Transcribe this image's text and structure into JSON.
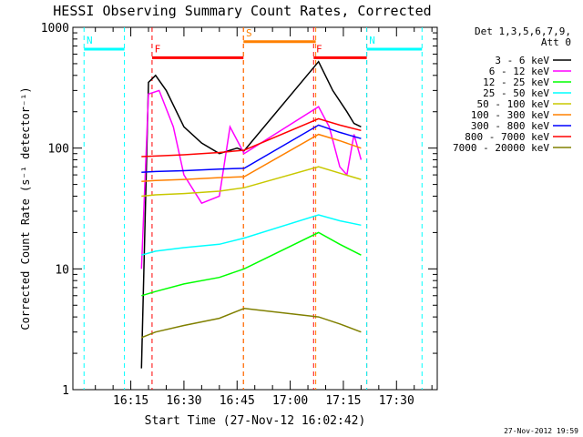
{
  "chart_data": {
    "type": "line",
    "title": "HESSI Observing Summary Count Rates, Corrected",
    "xlabel": "Start Time (27-Nov-12 16:02:42)",
    "ylabel": "Corrected Count Rate (s⁻¹ detector⁻¹)",
    "ylog": true,
    "ylim": [
      1,
      1000
    ],
    "xlim_minutes": [
      16.0,
      41.5
    ],
    "x_ticks": [
      "16:15",
      "16:30",
      "16:45",
      "17:00",
      "17:15",
      "17:30"
    ],
    "y_ticks": [
      "1",
      "10",
      "100",
      "1000"
    ],
    "legend_title": "Det 1,3,5,6,7,9,",
    "legend_subtitle": "Att 0",
    "legend_position": "right",
    "timestamp": "27-Nov-2012 19:59",
    "flags": [
      {
        "label": "F",
        "color": "#ff0000",
        "segments": [
          [
            16.35,
            16.78
          ],
          [
            17.11,
            17.36
          ]
        ],
        "level": 560
      },
      {
        "label": "N",
        "color": "#00ffff",
        "segments": [
          [
            16.03,
            16.22
          ],
          [
            17.36,
            17.62
          ]
        ],
        "level": 660
      },
      {
        "label": "S",
        "color": "#ff8000",
        "segments": [
          [
            16.78,
            17.12
          ]
        ],
        "level": 760
      }
    ],
    "series": [
      {
        "name": "3 - 6 keV",
        "color": "#000000",
        "x": [
          "16:18",
          "16:20",
          "16:22",
          "16:25",
          "16:30",
          "16:35",
          "16:40",
          "16:45",
          "16:47",
          "17:08",
          "17:12",
          "17:16",
          "17:18",
          "17:20"
        ],
        "y": [
          1.5,
          350,
          400,
          300,
          150,
          110,
          90,
          100,
          95,
          520,
          300,
          200,
          160,
          150
        ]
      },
      {
        "name": "6 - 12 keV",
        "color": "#ff00ff",
        "x": [
          "16:18",
          "16:20",
          "16:23",
          "16:27",
          "16:30",
          "16:35",
          "16:40",
          "16:43",
          "16:47",
          "17:08",
          "17:11",
          "17:14",
          "17:16",
          "17:18",
          "17:20"
        ],
        "y": [
          10,
          280,
          300,
          150,
          60,
          35,
          40,
          150,
          90,
          220,
          150,
          70,
          60,
          130,
          80
        ]
      },
      {
        "name": "12 - 25 keV",
        "color": "#00ff00",
        "x": [
          "16:18",
          "16:22",
          "16:30",
          "16:40",
          "16:47",
          "17:08",
          "17:14",
          "17:20"
        ],
        "y": [
          6.0,
          6.5,
          7.5,
          8.5,
          10,
          20,
          16,
          13
        ]
      },
      {
        "name": "25 - 50 keV",
        "color": "#00ffff",
        "x": [
          "16:18",
          "16:22",
          "16:30",
          "16:40",
          "16:47",
          "17:08",
          "17:14",
          "17:20"
        ],
        "y": [
          13,
          14,
          15,
          16,
          18,
          28,
          25,
          23
        ]
      },
      {
        "name": "50 - 100 keV",
        "color": "#c8c800",
        "x": [
          "16:18",
          "16:22",
          "16:30",
          "16:40",
          "16:47",
          "17:08",
          "17:14",
          "17:20"
        ],
        "y": [
          40,
          41,
          42,
          44,
          47,
          70,
          62,
          55
        ]
      },
      {
        "name": "100 - 300 keV",
        "color": "#ff8000",
        "x": [
          "16:18",
          "16:22",
          "16:30",
          "16:40",
          "16:47",
          "17:08",
          "17:14",
          "17:20"
        ],
        "y": [
          53,
          54,
          55,
          57,
          58,
          130,
          115,
          100
        ]
      },
      {
        "name": "300 - 800 keV",
        "color": "#0000ff",
        "x": [
          "16:18",
          "16:22",
          "16:30",
          "16:40",
          "16:47",
          "17:08",
          "17:14",
          "17:20"
        ],
        "y": [
          63,
          64,
          65,
          67,
          68,
          155,
          135,
          120
        ]
      },
      {
        "name": "800 - 7000 keV",
        "color": "#ff0000",
        "x": [
          "16:18",
          "16:22",
          "16:30",
          "16:40",
          "16:47",
          "17:08",
          "17:14",
          "17:20"
        ],
        "y": [
          85,
          86,
          88,
          92,
          96,
          175,
          155,
          140
        ]
      },
      {
        "name": "7000 - 20000 keV",
        "color": "#808000",
        "x": [
          "16:18",
          "16:22",
          "16:30",
          "16:40",
          "16:47",
          "17:08",
          "17:14",
          "17:20"
        ],
        "y": [
          2.7,
          3.0,
          3.4,
          3.9,
          4.7,
          4.0,
          3.5,
          3.0
        ]
      }
    ]
  }
}
